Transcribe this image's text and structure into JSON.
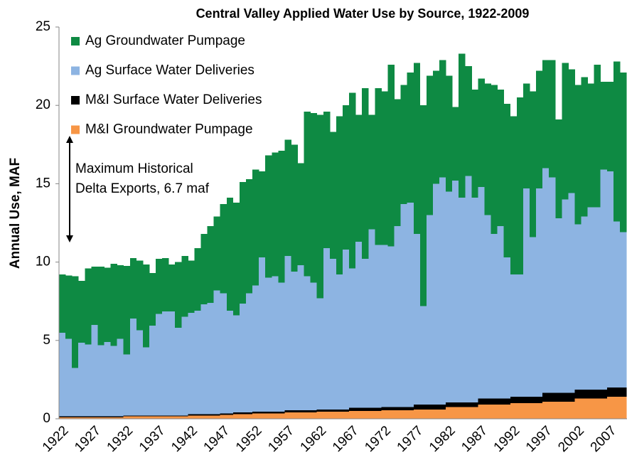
{
  "chart_data": {
    "type": "stacked-bar",
    "title": "Central Valley Applied Water Use by Source, 1922-2009",
    "y_label": "Annual Use, MAF",
    "annotation": [
      "Maximum Historical",
      "Delta Exports, 6.7 maf"
    ],
    "categories": [
      "1922",
      null,
      null,
      null,
      null,
      "1927",
      null,
      null,
      null,
      null,
      "1932",
      null,
      null,
      null,
      null,
      "1937",
      null,
      null,
      null,
      null,
      "1942",
      null,
      null,
      null,
      null,
      "1947",
      null,
      null,
      null,
      null,
      "1952",
      null,
      null,
      null,
      null,
      "1957",
      null,
      null,
      null,
      null,
      "1962",
      null,
      null,
      null,
      null,
      "1967",
      null,
      null,
      null,
      null,
      "1972",
      null,
      null,
      null,
      null,
      "1977",
      null,
      null,
      null,
      null,
      "1982",
      null,
      null,
      null,
      null,
      "1987",
      null,
      null,
      null,
      null,
      "1992",
      null,
      null,
      null,
      null,
      "1997",
      null,
      null,
      null,
      null,
      "2002",
      null,
      null,
      null,
      null,
      "2007",
      null,
      null
    ],
    "series": [
      {
        "name": "M&I Groundwater Pumpage",
        "color": "#f79646",
        "values": [
          0.1,
          0.1,
          0.1,
          0.1,
          0.1,
          0.1,
          0.1,
          0.1,
          0.1,
          0.1,
          0.15,
          0.15,
          0.15,
          0.15,
          0.15,
          0.15,
          0.15,
          0.15,
          0.15,
          0.15,
          0.2,
          0.2,
          0.2,
          0.2,
          0.2,
          0.25,
          0.25,
          0.3,
          0.3,
          0.3,
          0.35,
          0.35,
          0.35,
          0.35,
          0.35,
          0.4,
          0.4,
          0.4,
          0.4,
          0.4,
          0.45,
          0.45,
          0.45,
          0.45,
          0.45,
          0.5,
          0.5,
          0.5,
          0.5,
          0.5,
          0.55,
          0.55,
          0.55,
          0.55,
          0.55,
          0.6,
          0.6,
          0.6,
          0.6,
          0.6,
          0.75,
          0.75,
          0.75,
          0.75,
          0.75,
          0.9,
          0.9,
          0.9,
          0.9,
          0.9,
          1.0,
          1.0,
          1.0,
          1.0,
          1.0,
          1.1,
          1.1,
          1.1,
          1.1,
          1.1,
          1.3,
          1.3,
          1.3,
          1.3,
          1.3,
          1.4,
          1.4,
          1.4
        ]
      },
      {
        "name": "M&I Surface Water Deliveries",
        "color": "#000000",
        "values": [
          0.05,
          0.05,
          0.05,
          0.05,
          0.05,
          0.05,
          0.05,
          0.05,
          0.05,
          0.05,
          0.05,
          0.05,
          0.05,
          0.05,
          0.05,
          0.05,
          0.05,
          0.05,
          0.05,
          0.05,
          0.1,
          0.1,
          0.1,
          0.1,
          0.1,
          0.1,
          0.1,
          0.1,
          0.1,
          0.1,
          0.1,
          0.1,
          0.1,
          0.1,
          0.1,
          0.15,
          0.15,
          0.15,
          0.15,
          0.15,
          0.15,
          0.15,
          0.15,
          0.15,
          0.15,
          0.2,
          0.2,
          0.2,
          0.2,
          0.2,
          0.2,
          0.2,
          0.2,
          0.2,
          0.2,
          0.3,
          0.3,
          0.3,
          0.3,
          0.3,
          0.3,
          0.3,
          0.3,
          0.3,
          0.3,
          0.4,
          0.4,
          0.4,
          0.4,
          0.4,
          0.4,
          0.4,
          0.4,
          0.4,
          0.4,
          0.55,
          0.55,
          0.55,
          0.55,
          0.55,
          0.55,
          0.55,
          0.55,
          0.55,
          0.55,
          0.6,
          0.6,
          0.6
        ]
      },
      {
        "name": "Ag Surface Water Deliveries",
        "color": "#8db4e2",
        "values": [
          5.35,
          4.95,
          3.1,
          4.7,
          4.6,
          5.85,
          4.55,
          4.75,
          4.5,
          4.95,
          3.9,
          6.2,
          5.45,
          4.35,
          5.75,
          6.5,
          6.65,
          6.65,
          5.6,
          6.3,
          6.45,
          6.6,
          7.0,
          7.1,
          7.9,
          7.65,
          6.55,
          6.2,
          6.95,
          7.6,
          8.05,
          9.85,
          8.55,
          8.65,
          8.25,
          9.85,
          8.85,
          9.25,
          8.55,
          8.15,
          7.1,
          10.3,
          9.6,
          8.6,
          10.2,
          8.9,
          10.6,
          9.5,
          11.4,
          10.4,
          10.35,
          10.25,
          11.55,
          12.95,
          13.05,
          10.9,
          6.3,
          12.1,
          14.1,
          14.5,
          13.45,
          14.15,
          13.05,
          14.45,
          13.05,
          13.5,
          11.7,
          10.5,
          11.0,
          9.0,
          7.8,
          7.8,
          13.3,
          10.2,
          13.3,
          14.35,
          13.75,
          11.15,
          12.35,
          12.75,
          10.55,
          11.05,
          11.65,
          11.65,
          14.05,
          13.8,
          10.6,
          9.9
        ]
      },
      {
        "name": "Ag Groundwater Pumpage",
        "color": "#0e8a43",
        "values": [
          3.7,
          4.05,
          5.85,
          3.95,
          4.85,
          3.7,
          5.0,
          4.75,
          5.25,
          4.7,
          5.65,
          3.85,
          4.45,
          5.3,
          3.35,
          3.5,
          3.4,
          3.0,
          4.2,
          3.9,
          3.35,
          4.0,
          4.5,
          4.9,
          4.7,
          5.7,
          7.2,
          7.2,
          7.75,
          7.3,
          7.4,
          5.5,
          7.8,
          7.9,
          8.4,
          7.4,
          8.1,
          6.5,
          10.5,
          10.8,
          11.7,
          8.7,
          8.1,
          10.1,
          9.2,
          11.2,
          8.1,
          10.9,
          7.3,
          10.0,
          9.8,
          11.6,
          8.1,
          7.6,
          8.3,
          10.9,
          12.8,
          8.9,
          7.2,
          7.5,
          7.4,
          4.7,
          9.2,
          7.0,
          6.9,
          6.9,
          8.4,
          9.5,
          8.7,
          9.8,
          10.1,
          11.3,
          6.7,
          9.3,
          7.5,
          6.9,
          7.5,
          6.3,
          8.7,
          7.9,
          8.9,
          8.9,
          7.9,
          9.1,
          5.6,
          5.7,
          10.2,
          10.2
        ]
      }
    ],
    "ylim": [
      0,
      25
    ],
    "yticks": [
      0,
      5,
      10,
      15,
      20,
      25
    ],
    "legend": "upper-left"
  }
}
